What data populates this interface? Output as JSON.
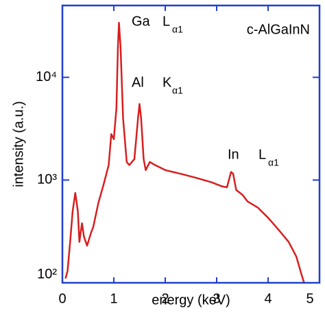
{
  "chart_data": {
    "type": "line",
    "xlabel": "energy (keV)",
    "ylabel": "intensity (a.u.)",
    "sample": "c-AlGaInN",
    "annotations": [
      {
        "element": "Ga",
        "line": "L",
        "sub": "α1"
      },
      {
        "element": "Al",
        "line": "K",
        "sub": "α1"
      },
      {
        "element": "In",
        "line": "L",
        "sub": "α1"
      }
    ],
    "x": [
      0.06,
      0.1,
      0.15,
      0.2,
      0.25,
      0.3,
      0.33,
      0.38,
      0.42,
      0.48,
      0.55,
      0.6,
      0.7,
      0.8,
      0.9,
      0.95,
      1.0,
      1.05,
      1.08,
      1.1,
      1.13,
      1.18,
      1.25,
      1.3,
      1.4,
      1.47,
      1.5,
      1.53,
      1.58,
      1.62,
      1.7,
      1.8,
      2.0,
      2.3,
      2.6,
      2.9,
      3.1,
      3.2,
      3.28,
      3.32,
      3.38,
      3.5,
      3.6,
      3.8,
      4.0,
      4.2,
      4.4,
      4.55,
      4.65,
      4.7
    ],
    "series": [
      {
        "color": "#d81e1e",
        "values": [
          110,
          130,
          250,
          500,
          750,
          500,
          250,
          380,
          280,
          230,
          300,
          350,
          600,
          900,
          1400,
          2800,
          2500,
          5000,
          20000,
          34000,
          20000,
          4000,
          1500,
          1400,
          1600,
          4000,
          5500,
          4000,
          1600,
          1250,
          1500,
          1400,
          1250,
          1150,
          1050,
          950,
          870,
          850,
          1200,
          1150,
          800,
          720,
          620,
          540,
          430,
          330,
          250,
          180,
          120,
          100
        ]
      }
    ],
    "xlim": [
      0,
      5
    ],
    "xticks": [
      0,
      1,
      2,
      3,
      4,
      5
    ],
    "ylim": [
      100,
      50000
    ],
    "log_y": true,
    "yticks": [
      {
        "value": 100,
        "label": "10²"
      },
      {
        "value": 1000,
        "label": "10³"
      },
      {
        "value": 10000,
        "label": "10⁴"
      }
    ],
    "frame_color": "#1f3fd0"
  }
}
